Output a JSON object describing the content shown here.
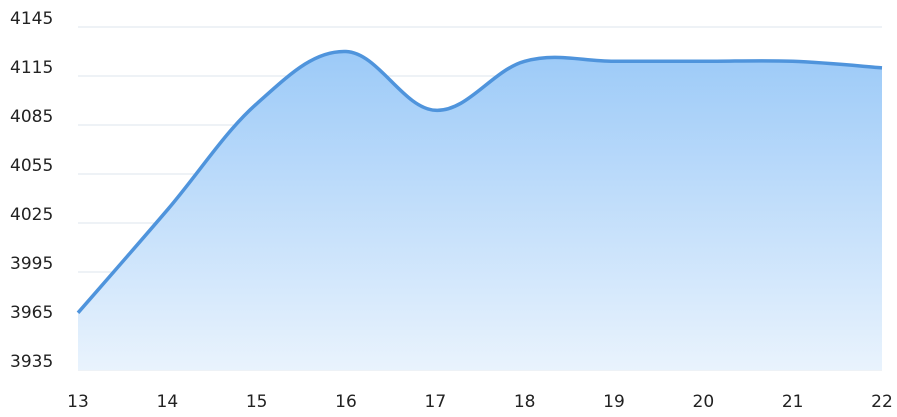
{
  "chart_data": {
    "type": "area",
    "x": [
      13,
      14,
      15,
      16,
      17,
      18,
      19,
      20,
      21,
      22
    ],
    "xlim": [
      13,
      22
    ],
    "xticks": [
      13,
      14,
      15,
      16,
      17,
      18,
      19,
      20,
      21,
      22
    ],
    "values": [
      3970,
      4033,
      4098,
      4130,
      4094,
      4124,
      4124,
      4124,
      4124,
      4120
    ],
    "ylim": [
      3935,
      4145
    ],
    "yticks": [
      3935,
      3965,
      3995,
      4025,
      4055,
      4085,
      4115,
      4145
    ],
    "color": "#4f94dc",
    "grid": true
  }
}
